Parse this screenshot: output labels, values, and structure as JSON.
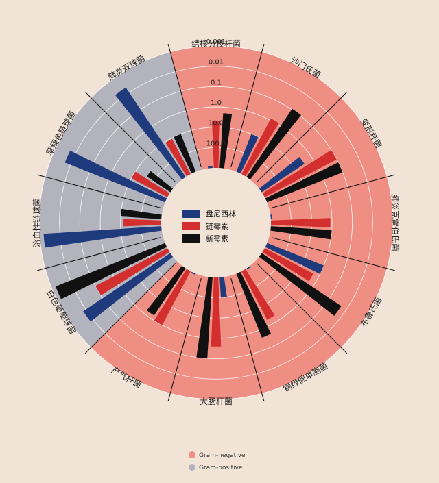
{
  "chart_data": {
    "type": "radial-bar",
    "scale": "log",
    "axis_label_note": "MIC",
    "ticks": [
      "0.001",
      "0.01",
      "0.1",
      "1.0",
      "10.0",
      "100.0"
    ],
    "tick_values": [
      0.001,
      0.01,
      0.1,
      1,
      10,
      100
    ],
    "r_domain": [
      1000,
      0.001
    ],
    "antibiotics": [
      {
        "name": "盘尼西林",
        "color": "#1f3b7d"
      },
      {
        "name": "链霉素",
        "color": "#d32f2f"
      },
      {
        "name": "新霉素",
        "color": "#111111"
      }
    ],
    "gram_legend": [
      {
        "name": "Gram-negative",
        "color": "#ef8e82"
      },
      {
        "name": "Gram-positive",
        "color": "#b3b3bd"
      }
    ],
    "bacteria": [
      {
        "name": "结核分枝杆菌",
        "gram": "negative",
        "values": [
          800,
          5,
          2
        ]
      },
      {
        "name": "沙门氏菌",
        "gram": "negative",
        "values": [
          10,
          0.8,
          0.09
        ]
      },
      {
        "name": "变形杆菌",
        "gram": "negative",
        "values": [
          3,
          0.1,
          0.1
        ]
      },
      {
        "name": "肺炎克雷伯氏菌",
        "gram": "negative",
        "values": [
          850,
          1.2,
          1
        ]
      },
      {
        "name": "布鲁氏菌",
        "gram": "negative",
        "values": [
          1,
          2,
          0.02
        ]
      },
      {
        "name": "铜绿假单胞菌",
        "gram": "negative",
        "values": [
          850,
          2,
          0.4
        ]
      },
      {
        "name": "大肠杆菌",
        "gram": "negative",
        "values": [
          100,
          0.4,
          0.1
        ]
      },
      {
        "name": "产气杆菌",
        "gram": "negative",
        "values": [
          870,
          1,
          1.6
        ]
      },
      {
        "name": "白色葡萄球菌",
        "gram": "positive",
        "values": [
          0.007,
          0.1,
          0.001
        ]
      },
      {
        "name": "溶血性链球菌",
        "gram": "positive",
        "values": [
          0.001,
          14,
          10
        ]
      },
      {
        "name": "草绿色链球菌",
        "gram": "positive",
        "values": [
          0.005,
          10,
          40
        ]
      },
      {
        "name": "肺炎双球菌",
        "gram": "positive",
        "values": [
          0.005,
          11,
          10
        ]
      }
    ]
  }
}
